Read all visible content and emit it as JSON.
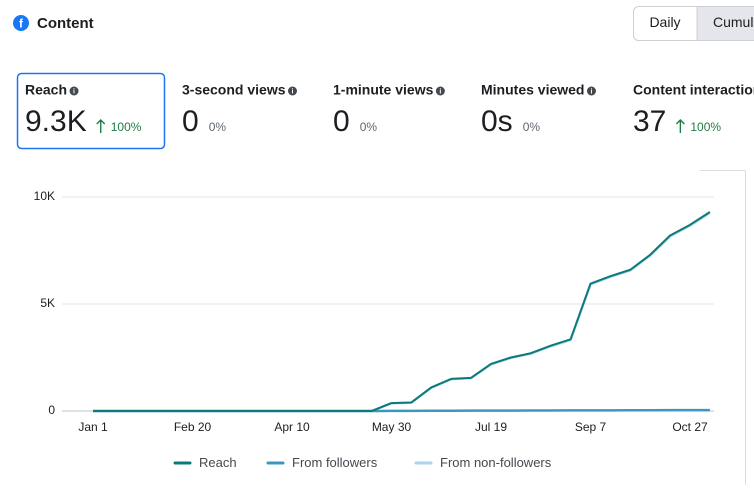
{
  "header": {
    "title": "Content",
    "toggle": [
      "Daily",
      "Cumulative"
    ]
  },
  "metrics": [
    {
      "label": "Reach",
      "value": "9.3K",
      "change": "100%",
      "up": true
    },
    {
      "label": "3-second views",
      "value": "0",
      "change": "0%",
      "up": false
    },
    {
      "label": "1-minute views",
      "value": "0",
      "change": "0%",
      "up": false
    },
    {
      "label": "Minutes viewed",
      "value": "0s",
      "change": "0%",
      "up": false
    },
    {
      "label": "Content interactions",
      "value": "37",
      "change": "100%",
      "up": true
    }
  ],
  "chart_data": {
    "type": "line",
    "categories": [
      "Jan 1",
      null,
      null,
      null,
      null,
      "Feb 20",
      null,
      null,
      null,
      null,
      "Apr 10",
      null,
      null,
      null,
      null,
      "May 30",
      null,
      null,
      null,
      null,
      "Jul 19",
      null,
      null,
      null,
      null,
      "Sep 7",
      null,
      null,
      null,
      null,
      "Oct 27",
      null
    ],
    "series": [
      {
        "name": "Reach",
        "color": "#0b7a78",
        "values": [
          0,
          0,
          0,
          0,
          0,
          0,
          0,
          0,
          0,
          0,
          0,
          0,
          0,
          0,
          0,
          370,
          400,
          1100,
          1500,
          1550,
          2200,
          2500,
          2700,
          3050,
          3350,
          5950,
          6300,
          6600,
          7300,
          8200,
          8700,
          9300
        ]
      },
      {
        "name": "From followers",
        "color": "#3c97c0",
        "values": [
          0,
          0,
          0,
          0,
          0,
          0,
          0,
          0,
          0,
          0,
          0,
          0,
          0,
          0,
          0,
          5,
          8,
          10,
          12,
          15,
          18,
          20,
          22,
          25,
          27,
          30,
          32,
          34,
          36,
          38,
          40,
          42
        ]
      },
      {
        "name": "From non-followers",
        "color": "#a9d6ee",
        "values": [
          0,
          0,
          0,
          0,
          0,
          0,
          0,
          0,
          0,
          0,
          0,
          0,
          0,
          0,
          0,
          365,
          392,
          1090,
          1488,
          1535,
          2182,
          2480,
          2678,
          3025,
          3323,
          5920,
          6268,
          6566,
          7264,
          8162,
          8660,
          9258
        ]
      }
    ],
    "ylim": [
      0,
      10000
    ],
    "yticks": [
      0,
      {
        "value": 5000,
        "label": "5K"
      },
      {
        "value": 10000,
        "label": "10K"
      }
    ],
    "grid": true
  }
}
